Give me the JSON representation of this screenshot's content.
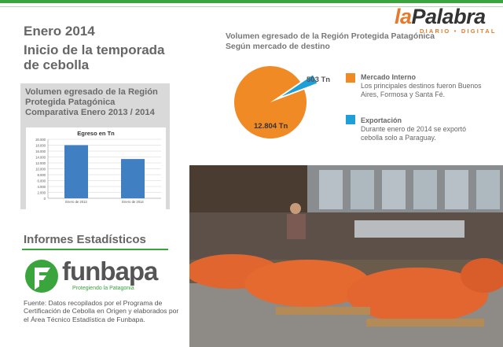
{
  "logo": {
    "la": "la",
    "palabra": "Palabra",
    "sub": "DIARIO • DIGITAL"
  },
  "header": {
    "date": "Enero 2014",
    "headline": "Inicio de la temporada de cebolla"
  },
  "left_chart": {
    "box_title": "Volumen egresado de la Región Protegida Patagónica Comparativa Enero 2013 / 2014",
    "inner_title": "Egreso en Tn"
  },
  "right_chart": {
    "title": "Volumen egresado de la Región Protegida Patagónica Según mercado de destino",
    "label_small": "503 Tn",
    "label_big": "12.804 Tn",
    "legend": [
      {
        "title": "Mercado Interno",
        "text": "Los principales destinos fueron Buenos Aires, Formosa y Santa Fé.",
        "color": "#f08a24"
      },
      {
        "title": "Exportación",
        "text": "Durante enero de 2014 se exportó cebolla solo a Paraguay.",
        "color": "#1e9fd8"
      }
    ]
  },
  "informes": {
    "title": "Informes Estadísticos"
  },
  "funbapa": {
    "name": "funbapa",
    "tagline": "Protegiendo la Patagonia"
  },
  "fuente": "Fuente: Datos recopilados por el Programa de Certificación de Cebolla en Origen y elaborados por el Área Técnico Estadística de Funbapa.",
  "colors": {
    "accent_green": "#3aa53d",
    "orange": "#f08a24",
    "blue": "#1e9fd8",
    "bar_blue": "#3f7fc2"
  },
  "chart_data": [
    {
      "type": "bar",
      "title": "Egreso en Tn",
      "categories": [
        "Enero de 2013",
        "Enero de 2014"
      ],
      "values": [
        18000,
        13307
      ],
      "ylim": [
        0,
        20000
      ],
      "yticks": [
        "0",
        "2.000",
        "4.000",
        "6.000",
        "8.000",
        "10.000",
        "12.000",
        "14.000",
        "16.000",
        "18.000",
        "20.000"
      ],
      "grid": true
    },
    {
      "type": "pie",
      "title": "Volumen egresado de la Región Protegida Patagónica Según mercado de destino",
      "categories": [
        "Mercado Interno",
        "Exportación"
      ],
      "values": [
        12804,
        503
      ],
      "labels": [
        "12.804 Tn",
        "503 Tn"
      ]
    }
  ]
}
